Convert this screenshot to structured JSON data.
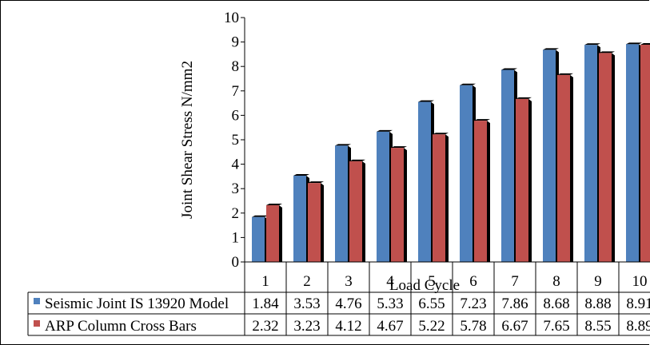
{
  "chart_data": {
    "type": "bar",
    "title": "",
    "xlabel": "Load Cycle",
    "ylabel": "Joint Shear Stress N/mm2",
    "ylim": [
      0,
      10
    ],
    "yticks": [
      "0",
      "1",
      "2",
      "3",
      "4",
      "5",
      "6",
      "7",
      "8",
      "9",
      "10"
    ],
    "categories": [
      "1",
      "2",
      "3",
      "4",
      "5",
      "6",
      "7",
      "8",
      "9",
      "10"
    ],
    "grid": false,
    "legend": "data-table",
    "series": [
      {
        "name": "Seismic Joint IS 13920 Model",
        "color": "#4f81bd",
        "values": [
          1.84,
          3.53,
          4.76,
          5.33,
          6.55,
          7.23,
          7.86,
          8.68,
          8.88,
          8.91
        ],
        "labels": [
          "1.84",
          "3.53",
          "4.76",
          "5.33",
          "6.55",
          "7.23",
          "7.86",
          "8.68",
          "8.88",
          "8.91"
        ]
      },
      {
        "name": "ARP Column Cross Bars",
        "color": "#c0504d",
        "values": [
          2.32,
          3.23,
          4.12,
          4.67,
          5.22,
          5.78,
          6.67,
          7.65,
          8.55,
          8.89
        ],
        "labels": [
          "2.32",
          "3.23",
          "4.12",
          "4.67",
          "5.22",
          "5.78",
          "6.67",
          "7.65",
          "8.55",
          "8.89"
        ]
      }
    ]
  }
}
